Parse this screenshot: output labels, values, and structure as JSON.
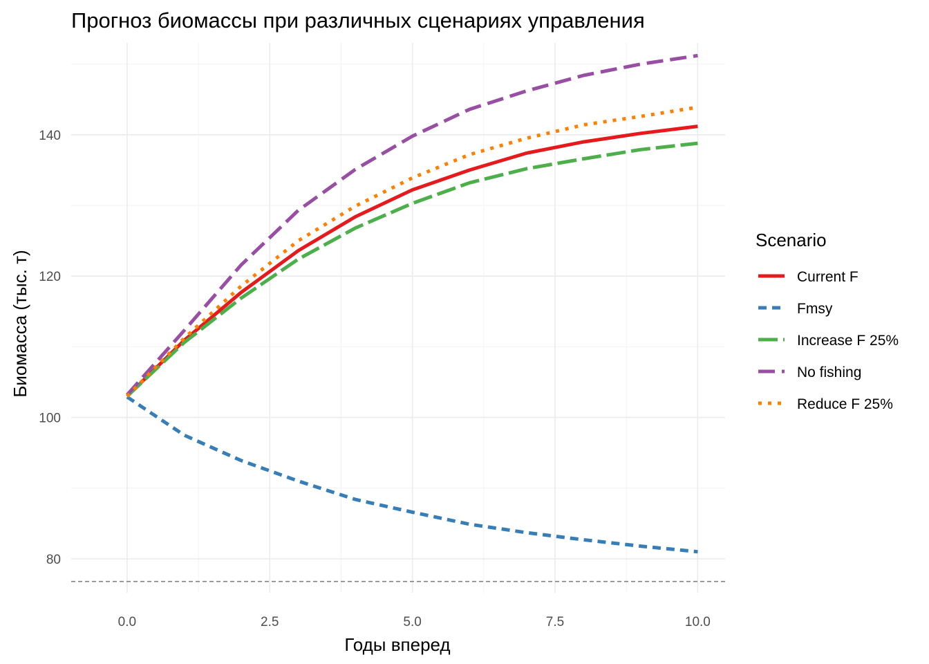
{
  "chart_data": {
    "type": "line",
    "title": "Прогноз биомассы при различных сценариях управления",
    "xlabel": "Годы вперед",
    "ylabel": "Биомасса (тыс. т)",
    "xlim": [
      -0.98,
      10.48
    ],
    "ylim": [
      75.2,
      153.0
    ],
    "x_ticks": [
      0,
      2.5,
      5,
      7.5,
      10
    ],
    "x_tick_labels": [
      "0.0",
      "2.5",
      "5.0",
      "7.5",
      "10.0"
    ],
    "y_ticks": [
      80,
      100,
      120,
      140
    ],
    "y_tick_labels": [
      "80",
      "100",
      "120",
      "140"
    ],
    "grid": true,
    "legend_position": "right",
    "legend_title": "Scenario",
    "reference_line": {
      "y": 76.8,
      "style": "dashed",
      "color": "#808080"
    },
    "x": [
      0,
      1,
      2,
      3,
      4,
      5,
      6,
      7,
      8,
      9,
      10
    ],
    "series": [
      {
        "name": "Current F",
        "color": "#e41a1c",
        "dash": "solid",
        "width": 5,
        "values": [
          103.0,
          110.9,
          117.7,
          123.6,
          128.4,
          132.2,
          135.0,
          137.4,
          139.0,
          140.2,
          141.2
        ]
      },
      {
        "name": "Fmsy",
        "color": "#377eb8",
        "dash": "dashed",
        "width": 5,
        "values": [
          102.9,
          97.5,
          93.9,
          91.0,
          88.4,
          86.6,
          84.9,
          83.7,
          82.7,
          81.8,
          81.0
        ]
      },
      {
        "name": "Increase F 25%",
        "color": "#4daf4a",
        "dash": "longdash",
        "width": 5,
        "values": [
          103.0,
          110.6,
          116.9,
          122.4,
          126.8,
          130.3,
          133.2,
          135.2,
          136.6,
          137.9,
          138.8
        ]
      },
      {
        "name": "No fishing",
        "color": "#984ea3",
        "dash": "twodash",
        "width": 5,
        "values": [
          103.2,
          112.3,
          121.6,
          129.3,
          135.1,
          139.8,
          143.6,
          146.2,
          148.4,
          150.0,
          151.2
        ]
      },
      {
        "name": "Reduce F 25%",
        "color": "#ff7f00",
        "dash": "dotted",
        "width": 5,
        "values": [
          103.0,
          111.2,
          118.6,
          125.0,
          129.9,
          133.9,
          137.2,
          139.5,
          141.4,
          142.6,
          143.9
        ]
      }
    ]
  }
}
